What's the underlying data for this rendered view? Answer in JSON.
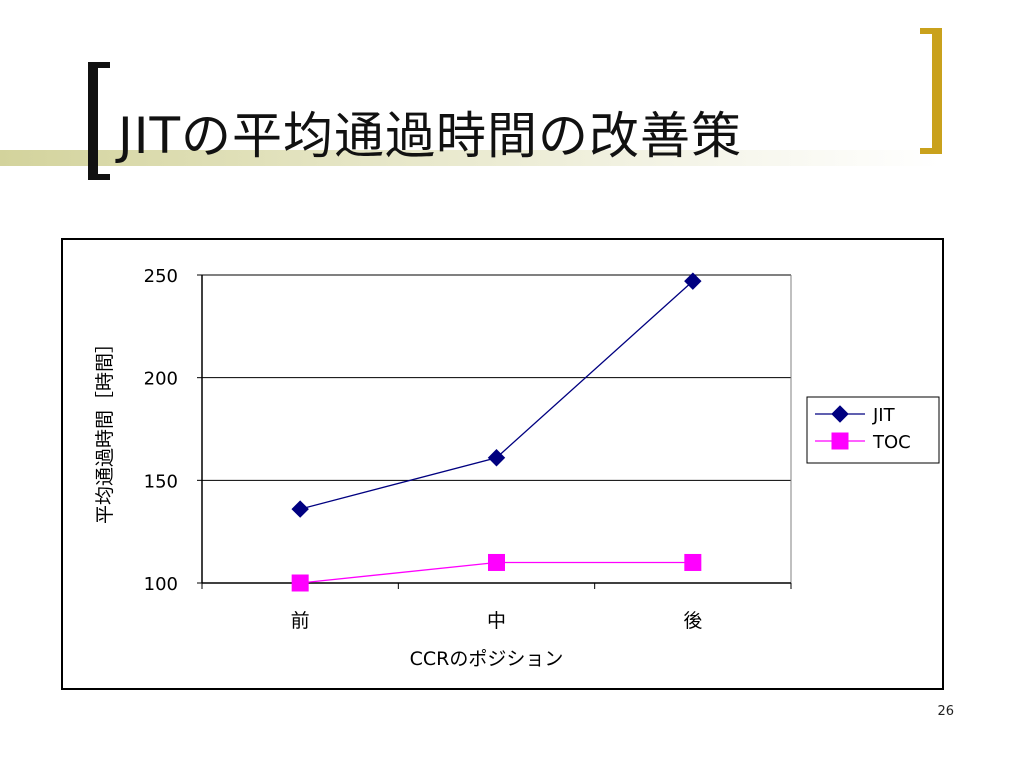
{
  "slide": {
    "title": "JITの平均通過時間の改善策",
    "page_number": "26"
  },
  "colors": {
    "title_bracket_left": "#111111",
    "title_bracket_right": "#c9a11c",
    "accent_bar": "#d3d39c"
  },
  "chart_data": {
    "type": "line",
    "categories": [
      "前",
      "中",
      "後"
    ],
    "series": [
      {
        "name": "JIT",
        "values": [
          136,
          161,
          247
        ],
        "color": "#000080",
        "marker": "diamond"
      },
      {
        "name": "TOC",
        "values": [
          100,
          110,
          110
        ],
        "color": "#ff00ff",
        "marker": "square"
      }
    ],
    "xlabel": "CCRのポジション",
    "ylabel": "平均通過時間［時間］",
    "ylim": [
      100,
      250
    ],
    "yticks": [
      100,
      150,
      200,
      250
    ],
    "ytick_labels": [
      "100",
      "150",
      "200",
      "250"
    ],
    "grid": true,
    "legend": "right"
  }
}
